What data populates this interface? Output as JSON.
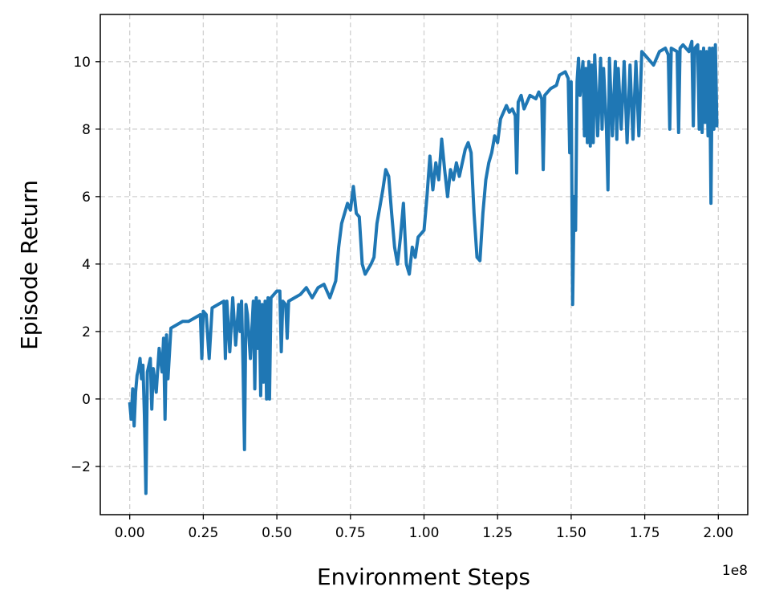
{
  "chart_data": {
    "type": "line",
    "xlabel": "Environment Steps",
    "ylabel": "Episode Return",
    "x_offset_label": "1e8",
    "xlim": [
      -0.1,
      2.1
    ],
    "ylim": [
      -3.43,
      11.4
    ],
    "xticks": [
      {
        "value": 0,
        "label": "0.00"
      },
      {
        "value": 0.25,
        "label": "0.25"
      },
      {
        "value": 0.5,
        "label": "0.50"
      },
      {
        "value": 0.75,
        "label": "0.75"
      },
      {
        "value": 1,
        "label": "1.00"
      },
      {
        "value": 1.25,
        "label": "1.25"
      },
      {
        "value": 1.5,
        "label": "1.50"
      },
      {
        "value": 1.75,
        "label": "1.75"
      },
      {
        "value": 2,
        "label": "2.00"
      }
    ],
    "yticks": [
      {
        "value": -2,
        "label": "−2"
      },
      0,
      2,
      4,
      6,
      8,
      10
    ],
    "grid": true,
    "series": [
      {
        "color": "#1f77b4",
        "x": [
          0,
          0.005,
          0.01,
          0.015,
          0.02,
          0.025,
          0.03,
          0.035,
          0.04,
          0.045,
          0.05,
          0.055,
          0.06,
          0.07,
          0.075,
          0.08,
          0.09,
          0.1,
          0.11,
          0.115,
          0.12,
          0.125,
          0.13,
          0.14,
          0.16,
          0.18,
          0.2,
          0.22,
          0.24,
          0.245,
          0.25,
          0.26,
          0.27,
          0.28,
          0.3,
          0.32,
          0.325,
          0.33,
          0.34,
          0.35,
          0.36,
          0.37,
          0.375,
          0.38,
          0.385,
          0.39,
          0.395,
          0.4,
          0.41,
          0.42,
          0.425,
          0.43,
          0.435,
          0.44,
          0.445,
          0.45,
          0.455,
          0.46,
          0.465,
          0.47,
          0.475,
          0.48,
          0.5,
          0.51,
          0.515,
          0.52,
          0.53,
          0.535,
          0.54,
          0.56,
          0.58,
          0.6,
          0.62,
          0.64,
          0.66,
          0.68,
          0.7,
          0.71,
          0.72,
          0.74,
          0.75,
          0.76,
          0.77,
          0.78,
          0.79,
          0.8,
          0.82,
          0.83,
          0.84,
          0.86,
          0.87,
          0.88,
          0.89,
          0.9,
          0.91,
          0.92,
          0.93,
          0.94,
          0.95,
          0.96,
          0.97,
          0.98,
          1,
          1.01,
          1.02,
          1.03,
          1.04,
          1.05,
          1.06,
          1.07,
          1.08,
          1.09,
          1.1,
          1.11,
          1.12,
          1.14,
          1.15,
          1.16,
          1.17,
          1.18,
          1.19,
          1.2,
          1.21,
          1.22,
          1.23,
          1.24,
          1.25,
          1.26,
          1.28,
          1.29,
          1.3,
          1.31,
          1.315,
          1.32,
          1.33,
          1.34,
          1.36,
          1.38,
          1.39,
          1.4,
          1.405,
          1.41,
          1.43,
          1.45,
          1.46,
          1.48,
          1.49,
          1.495,
          1.5,
          1.505,
          1.51,
          1.515,
          1.52,
          1.525,
          1.53,
          1.54,
          1.545,
          1.55,
          1.555,
          1.56,
          1.565,
          1.57,
          1.575,
          1.58,
          1.59,
          1.6,
          1.605,
          1.61,
          1.62,
          1.625,
          1.63,
          1.64,
          1.65,
          1.655,
          1.66,
          1.67,
          1.68,
          1.69,
          1.7,
          1.71,
          1.72,
          1.73,
          1.74,
          1.76,
          1.78,
          1.8,
          1.82,
          1.83,
          1.835,
          1.84,
          1.86,
          1.865,
          1.87,
          1.88,
          1.9,
          1.91,
          1.915,
          1.92,
          1.93,
          1.935,
          1.94,
          1.945,
          1.95,
          1.955,
          1.96,
          1.965,
          1.97,
          1.975,
          1.98,
          1.985,
          1.99,
          1.995,
          2
        ],
        "values": [
          -0.1,
          -0.6,
          0.3,
          -0.8,
          0.2,
          0.7,
          0.9,
          1.2,
          0.6,
          1,
          -0.5,
          -2.8,
          0.8,
          1.2,
          -0.3,
          0.9,
          0.2,
          1.5,
          0.8,
          1.8,
          -0.6,
          1.9,
          0.6,
          2.1,
          2.2,
          2.3,
          2.3,
          2.4,
          2.5,
          1.2,
          2.6,
          2.5,
          1.2,
          2.7,
          2.8,
          2.9,
          1.2,
          2.9,
          1.4,
          3,
          1.6,
          2.8,
          2,
          2.9,
          1,
          -1.5,
          2.8,
          2.5,
          1.2,
          2.9,
          0.3,
          3,
          1.5,
          2.9,
          0.1,
          2.8,
          0.5,
          2.9,
          0,
          3,
          0,
          3,
          3.2,
          3.2,
          1.4,
          2.9,
          2.8,
          1.8,
          2.9,
          3,
          3.1,
          3.3,
          3,
          3.3,
          3.4,
          3,
          3.5,
          4.5,
          5.2,
          5.8,
          5.6,
          6.3,
          5.5,
          5.4,
          4,
          3.7,
          4,
          4.2,
          5.2,
          6.2,
          6.8,
          6.6,
          5.5,
          4.5,
          4,
          4.8,
          5.8,
          4,
          3.7,
          4.5,
          4.2,
          4.8,
          5,
          6,
          7.2,
          6.2,
          7,
          6.5,
          7.7,
          6.8,
          6,
          6.8,
          6.5,
          7,
          6.6,
          7.4,
          7.6,
          7.3,
          5.5,
          4.2,
          4.1,
          5.5,
          6.5,
          7,
          7.3,
          7.8,
          7.6,
          8.3,
          8.7,
          8.5,
          8.6,
          8.4,
          6.7,
          8.8,
          9,
          8.6,
          9,
          8.9,
          9.1,
          8.9,
          6.8,
          9,
          9.2,
          9.3,
          9.6,
          9.7,
          9.5,
          7.3,
          9.4,
          2.8,
          6,
          5,
          9.4,
          10.1,
          9,
          10,
          7.8,
          9.8,
          7.6,
          10,
          7.5,
          9.9,
          7.6,
          10.2,
          7.8,
          10.1,
          8,
          9.8,
          8,
          6.2,
          10.1,
          7.8,
          10,
          7.7,
          9.8,
          8,
          10,
          7.6,
          9.9,
          7.7,
          10,
          7.8,
          10.3,
          10.1,
          9.9,
          10.3,
          10.4,
          10.2,
          8,
          10.4,
          10.3,
          7.9,
          10.4,
          10.5,
          10.3,
          10.6,
          8.1,
          10.4,
          10.5,
          8,
          10.3,
          7.9,
          10.4,
          8.2,
          10.3,
          7.8,
          10.4,
          5.8,
          10.4,
          8,
          10.5,
          8.1,
          8.1
        ]
      }
    ]
  }
}
